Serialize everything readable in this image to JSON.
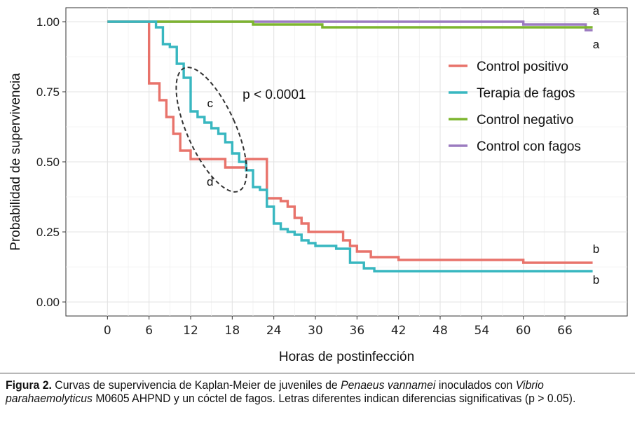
{
  "chart_data": {
    "type": "line",
    "subtype": "kaplan-meier step",
    "xlabel": "Horas de postinfección",
    "ylabel": "Probabilidad de supervivencia",
    "xlim": [
      -6,
      75
    ],
    "ylim": [
      -0.05,
      1.05
    ],
    "x_ticks": [
      0,
      6,
      12,
      18,
      24,
      30,
      36,
      42,
      48,
      54,
      60,
      66
    ],
    "y_ticks": [
      0.0,
      0.25,
      0.5,
      0.75,
      1.0
    ],
    "y_tick_labels": [
      "0.00",
      "0.25",
      "0.50",
      "0.75",
      "1.00"
    ],
    "grid": true,
    "legend_position": "top-right inside",
    "series": [
      {
        "name": "Control positivo",
        "color": "#e8736b",
        "x": [
          0,
          6,
          7.5,
          8.5,
          9.5,
          10.5,
          12,
          17,
          20,
          23,
          25,
          26,
          27,
          28,
          29,
          31,
          34,
          35,
          36,
          38,
          40,
          42,
          48,
          60,
          70
        ],
        "y": [
          1.0,
          0.78,
          0.72,
          0.66,
          0.6,
          0.54,
          0.51,
          0.48,
          0.51,
          0.37,
          0.36,
          0.34,
          0.3,
          0.28,
          0.25,
          0.25,
          0.22,
          0.2,
          0.18,
          0.16,
          0.16,
          0.15,
          0.15,
          0.14,
          0.14
        ]
      },
      {
        "name": "Terapia de fagos",
        "color": "#38b7c0",
        "x": [
          0,
          7,
          8,
          9,
          10,
          11,
          12,
          13,
          14,
          15,
          16,
          17,
          18,
          19,
          20,
          21,
          22,
          23,
          24,
          25,
          26,
          27,
          28,
          29,
          30,
          33,
          35,
          37,
          38.5,
          40,
          70
        ],
        "y": [
          1.0,
          0.98,
          0.92,
          0.91,
          0.85,
          0.8,
          0.68,
          0.66,
          0.64,
          0.62,
          0.6,
          0.57,
          0.53,
          0.5,
          0.47,
          0.41,
          0.4,
          0.34,
          0.28,
          0.26,
          0.25,
          0.24,
          0.22,
          0.21,
          0.2,
          0.19,
          0.14,
          0.12,
          0.11,
          0.11,
          0.11
        ]
      },
      {
        "name": "Control negativo",
        "color": "#7db52f",
        "x": [
          0,
          21,
          31,
          70
        ],
        "y": [
          1.0,
          0.99,
          0.98,
          0.98
        ]
      },
      {
        "name": "Control con fagos",
        "color": "#9b7bc0",
        "x": [
          0,
          22,
          60,
          69,
          70
        ],
        "y": [
          1.0,
          1.0,
          0.99,
          0.97,
          0.97
        ]
      }
    ],
    "annotations": [
      {
        "text": "p < 0.0001",
        "x": 19.5,
        "y": 0.74
      },
      {
        "text": "c",
        "x": 14.8,
        "y": 0.71
      },
      {
        "text": "d",
        "x": 14.8,
        "y": 0.43
      },
      {
        "text": "a",
        "x": 70.5,
        "y": 1.04
      },
      {
        "text": "a",
        "x": 70.5,
        "y": 0.92
      },
      {
        "text": "b",
        "x": 70.5,
        "y": 0.19
      },
      {
        "text": "b",
        "x": 70.5,
        "y": 0.08
      }
    ],
    "highlight_ellipse": {
      "cx": 15,
      "cy": 0.615,
      "rx": 3.5,
      "ry": 0.24,
      "angle_deg": -24,
      "style": "dashed"
    }
  },
  "caption": {
    "label": "Figura 2.",
    "text_1": " Curvas de supervivencia de Kaplan-Meier de juveniles de ",
    "species_1": "Penaeus vannamei",
    "text_2": " inoculados con ",
    "species_2": "Vibrio parahaemolyticus",
    "text_3": " M0605 AHPND y un cóctel de fagos. Letras diferentes indican diferencias significativas (p > 0.05)."
  }
}
